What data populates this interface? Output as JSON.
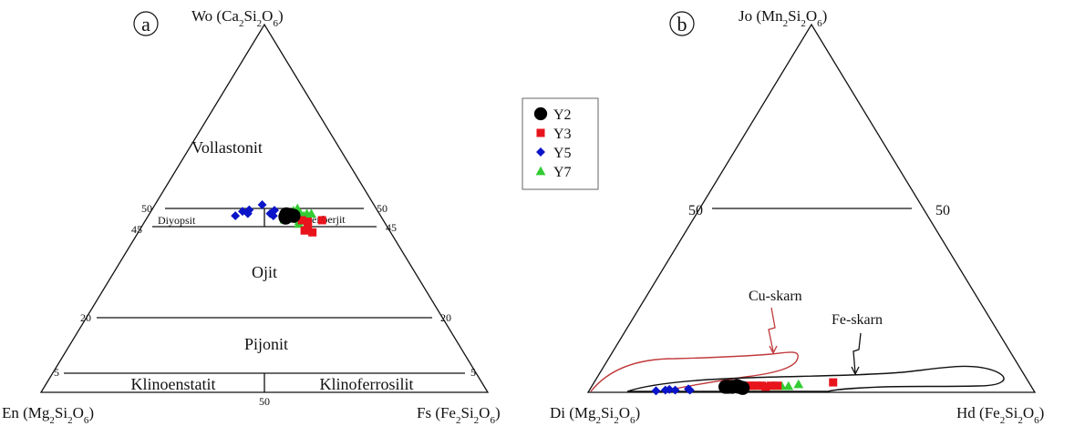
{
  "chart_data": [
    {
      "type": "scatter",
      "panel_label": "a",
      "vertices": {
        "top": "Wo (Ca2Si2O6)",
        "left": "En (Mg2Si2O6)",
        "right": "Fs (Fe2Si2O6)"
      },
      "fields": {
        "vollastonit": "Vollastonit",
        "diyopsit": "Diyopsit",
        "hedenberjit": "Hedenberjit",
        "ojit": "Ojit",
        "pijonit": "Pijonit",
        "klinoenstatit": "Klinoenstatit",
        "klinoferrosilit": "Klinoferrosilit"
      },
      "ticks": {
        "wo50": "50",
        "wo45": "45",
        "wo20": "20",
        "wo5": "5",
        "fs50": "50"
      },
      "series": [
        {
          "name": "Y2",
          "marker": "circle",
          "color": "#000000",
          "points": [
            [
              47.5,
              31.0
            ],
            [
              48.0,
              32.5
            ],
            [
              48.2,
              31.8
            ],
            [
              47.8,
              30.8
            ],
            [
              48.4,
              30.7
            ]
          ]
        },
        {
          "name": "Y3",
          "marker": "square",
          "color": "#e8141c",
          "points": [
            [
              46.8,
              35.0
            ],
            [
              44.0,
              37.0
            ],
            [
              43.5,
              39.0
            ],
            [
              45.5,
              37.0
            ],
            [
              46.4,
              36.5
            ],
            [
              46.8,
              39.5
            ]
          ]
        },
        {
          "name": "Y5",
          "marker": "diamond",
          "color": "#0a14c8",
          "points": [
            [
              48.0,
              19.5
            ],
            [
              49.2,
              20.5
            ],
            [
              48.6,
              22.0
            ],
            [
              49.6,
              21.8
            ],
            [
              51.0,
              24.0
            ],
            [
              49.5,
              27.5
            ],
            [
              48.0,
              28.0
            ],
            [
              48.6,
              27.0
            ]
          ]
        },
        {
          "name": "Y7",
          "marker": "triangle",
          "color": "#33cc33",
          "points": [
            [
              49.4,
              31.8
            ],
            [
              50.0,
              32.4
            ],
            [
              48.6,
              33.8
            ],
            [
              47.0,
              31.0
            ],
            [
              45.8,
              34.8
            ],
            [
              47.2,
              34.0
            ],
            [
              47.0,
              34.8
            ],
            [
              48.6,
              33.0
            ],
            [
              48.0,
              34.8
            ],
            [
              48.6,
              35.2
            ],
            [
              48.0,
              35.5
            ],
            [
              46.6,
              34.5
            ],
            [
              48.6,
              36.2
            ]
          ]
        }
      ]
    },
    {
      "type": "scatter",
      "panel_label": "b",
      "vertices": {
        "top": "Jo (Mn2Si2O6)",
        "left": "Di (Mg2Si2O6)",
        "right": "Hd (Fe2Si2O6)"
      },
      "ticks": {
        "jo50_left": "50",
        "jo50_right": "50"
      },
      "annotations": {
        "cu_skarn": "Cu-skarn",
        "fe_skarn": "Fe-skarn"
      },
      "series": [
        {
          "name": "Y2",
          "marker": "circle",
          "color": "#000000",
          "points": [
            [
              1.5,
              30.5
            ],
            [
              1.5,
              31.5
            ],
            [
              1.7,
              32.5
            ],
            [
              1.5,
              33.0
            ],
            [
              1.2,
              34.0
            ],
            [
              1.5,
              30.0
            ]
          ]
        },
        {
          "name": "Y3",
          "marker": "square",
          "color": "#e8141c",
          "points": [
            [
              1.8,
              35.0
            ],
            [
              1.8,
              36.0
            ],
            [
              1.8,
              37.0
            ],
            [
              1.8,
              38.0
            ],
            [
              1.5,
              39.0
            ],
            [
              1.8,
              40.0
            ],
            [
              1.8,
              41.5
            ],
            [
              2.7,
              53.5
            ]
          ]
        },
        {
          "name": "Y5",
          "marker": "diamond",
          "color": "#0a14c8",
          "points": [
            [
              0.4,
              15.0
            ],
            [
              0.6,
              17.0
            ],
            [
              0.8,
              17.8
            ],
            [
              0.6,
              19.2
            ],
            [
              0.9,
              22.0
            ],
            [
              0.6,
              22.5
            ]
          ]
        },
        {
          "name": "Y7",
          "marker": "triangle",
          "color": "#33cc33",
          "points": [
            [
              1.7,
              34.0
            ],
            [
              1.7,
              36.0
            ],
            [
              1.7,
              38.5
            ],
            [
              1.7,
              40.5
            ],
            [
              1.7,
              42.5
            ],
            [
              1.7,
              44.0
            ],
            [
              2.2,
              46.0
            ]
          ]
        }
      ]
    }
  ],
  "legend": {
    "placement": "center",
    "items": [
      {
        "label": "Y2",
        "marker": "circle",
        "color": "#000000"
      },
      {
        "label": "Y3",
        "marker": "square",
        "color": "#e8141c"
      },
      {
        "label": "Y5",
        "marker": "diamond",
        "color": "#0a14c8"
      },
      {
        "label": "Y7",
        "marker": "triangle",
        "color": "#33cc33"
      }
    ]
  },
  "colors": {
    "line": "#111111",
    "cu_skarn_outline": "#c0393b",
    "fe_skarn_outline": "#111111"
  }
}
